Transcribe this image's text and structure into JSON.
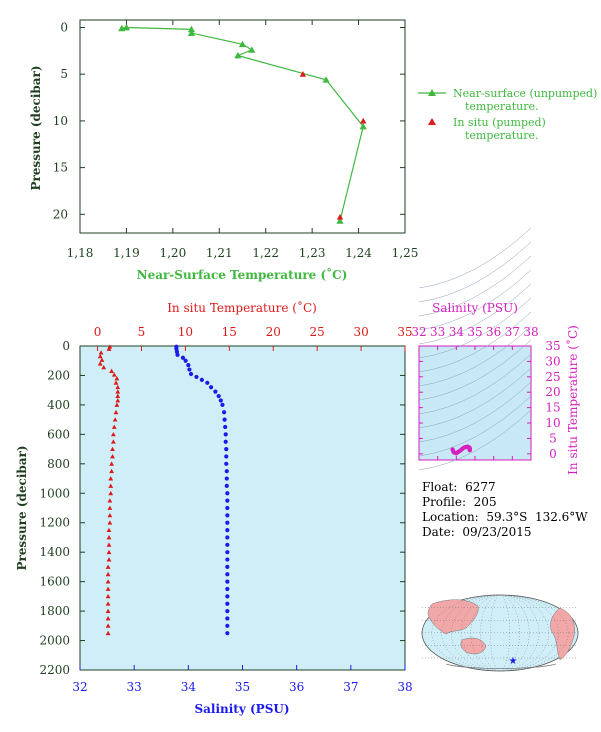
{
  "colors": {
    "near_surface": "#3fb83f",
    "insitu_temp": "#dd1a1a",
    "salinity": "#1a1aee",
    "ts_magenta": "#d61fbf",
    "axis_dark": "#1f3f1f",
    "profile_bg": "#cfeef8",
    "ts_bg": "#c8e8f6"
  },
  "info": {
    "float_label": "Float:",
    "float_value": "6277",
    "profile_label": "Profile:",
    "profile_value": "205",
    "location_label": "Location:",
    "location_value": "59.3°S  132.6°W",
    "date_label": "Date:",
    "date_value": "09/23/2015"
  },
  "chart_data": [
    {
      "type": "line",
      "xlabel": "Near-Surface Temperature (˚C)",
      "ylabel": "Pressure (decibar)",
      "xlim": [
        1.18,
        1.25
      ],
      "ylim": [
        0,
        22
      ],
      "y_inverted": true,
      "xticks": [
        "1,18",
        "1,19",
        "1,20",
        "1,21",
        "1,22",
        "1,23",
        "1,24",
        "1,25"
      ],
      "yticks": [
        "0",
        "5",
        "10",
        "15",
        "20"
      ],
      "legend_placement": "right",
      "series": [
        {
          "name": "Near-surface (unpumped) temperature.",
          "marker": "triangle",
          "connected": true,
          "points": [
            [
              1.189,
              0.1
            ],
            [
              1.19,
              0.0
            ],
            [
              1.204,
              0.2
            ],
            [
              1.204,
              0.6
            ],
            [
              1.215,
              1.8
            ],
            [
              1.217,
              2.4
            ],
            [
              1.214,
              3.0
            ],
            [
              1.233,
              5.6
            ],
            [
              1.241,
              10.6
            ],
            [
              1.236,
              20.7
            ]
          ]
        },
        {
          "name": "In situ (pumped) temperature.",
          "marker": "triangle",
          "connected": false,
          "points": [
            [
              1.228,
              5.0
            ],
            [
              1.241,
              10.0
            ],
            [
              1.236,
              20.3
            ]
          ]
        }
      ]
    },
    {
      "type": "scatter",
      "ylabel": "Pressure (decibar)",
      "ylim": [
        0,
        2200
      ],
      "y_inverted": true,
      "yticks": [
        "0",
        "200",
        "400",
        "600",
        "800",
        "1000",
        "1200",
        "1400",
        "1600",
        "1800",
        "2000",
        "2200"
      ],
      "x_top_label": "In situ Temperature (˚C)",
      "x_top_lim": [
        -2,
        35
      ],
      "x_top_ticks": [
        "0",
        "5",
        "10",
        "15",
        "20",
        "25",
        "30",
        "35"
      ],
      "x_bottom_label": "Salinity (PSU)",
      "x_bottom_lim": [
        32,
        38
      ],
      "x_bottom_ticks": [
        "32",
        "33",
        "34",
        "35",
        "36",
        "37",
        "38"
      ],
      "temperature": {
        "points": [
          [
            1.4,
            5
          ],
          [
            1.3,
            20
          ],
          [
            0.4,
            45
          ],
          [
            0.3,
            70
          ],
          [
            0.5,
            95
          ],
          [
            0.3,
            120
          ],
          [
            0.7,
            145
          ],
          [
            1.6,
            170
          ],
          [
            1.9,
            195
          ],
          [
            2.2,
            220
          ],
          [
            2.1,
            250
          ],
          [
            2.3,
            280
          ],
          [
            2.3,
            310
          ],
          [
            2.3,
            340
          ],
          [
            2.3,
            370
          ],
          [
            2.2,
            400
          ],
          [
            2.1,
            450
          ],
          [
            2.0,
            500
          ],
          [
            1.9,
            550
          ],
          [
            1.8,
            600
          ],
          [
            1.8,
            650
          ],
          [
            1.7,
            700
          ],
          [
            1.7,
            750
          ],
          [
            1.6,
            800
          ],
          [
            1.6,
            850
          ],
          [
            1.5,
            900
          ],
          [
            1.5,
            950
          ],
          [
            1.5,
            1000
          ],
          [
            1.4,
            1050
          ],
          [
            1.4,
            1100
          ],
          [
            1.4,
            1150
          ],
          [
            1.4,
            1200
          ],
          [
            1.3,
            1250
          ],
          [
            1.3,
            1300
          ],
          [
            1.3,
            1350
          ],
          [
            1.3,
            1400
          ],
          [
            1.3,
            1450
          ],
          [
            1.2,
            1500
          ],
          [
            1.2,
            1550
          ],
          [
            1.2,
            1600
          ],
          [
            1.2,
            1650
          ],
          [
            1.2,
            1700
          ],
          [
            1.2,
            1750
          ],
          [
            1.2,
            1800
          ],
          [
            1.2,
            1850
          ],
          [
            1.2,
            1900
          ],
          [
            1.2,
            1950
          ]
        ]
      },
      "salinity": {
        "points": [
          [
            33.78,
            5
          ],
          [
            33.78,
            20
          ],
          [
            33.79,
            40
          ],
          [
            33.8,
            60
          ],
          [
            33.9,
            80
          ],
          [
            33.95,
            100
          ],
          [
            34.0,
            130
          ],
          [
            34.02,
            160
          ],
          [
            34.05,
            190
          ],
          [
            34.15,
            210
          ],
          [
            34.25,
            230
          ],
          [
            34.35,
            250
          ],
          [
            34.42,
            280
          ],
          [
            34.5,
            310
          ],
          [
            34.56,
            340
          ],
          [
            34.6,
            370
          ],
          [
            34.63,
            400
          ],
          [
            34.66,
            450
          ],
          [
            34.67,
            500
          ],
          [
            34.68,
            550
          ],
          [
            34.69,
            600
          ],
          [
            34.69,
            650
          ],
          [
            34.7,
            700
          ],
          [
            34.7,
            750
          ],
          [
            34.7,
            800
          ],
          [
            34.71,
            850
          ],
          [
            34.71,
            900
          ],
          [
            34.71,
            950
          ],
          [
            34.72,
            1000
          ],
          [
            34.72,
            1050
          ],
          [
            34.72,
            1100
          ],
          [
            34.72,
            1150
          ],
          [
            34.72,
            1200
          ],
          [
            34.72,
            1250
          ],
          [
            34.72,
            1300
          ],
          [
            34.72,
            1350
          ],
          [
            34.72,
            1400
          ],
          [
            34.72,
            1450
          ],
          [
            34.72,
            1500
          ],
          [
            34.72,
            1550
          ],
          [
            34.72,
            1600
          ],
          [
            34.72,
            1650
          ],
          [
            34.72,
            1700
          ],
          [
            34.72,
            1750
          ],
          [
            34.72,
            1800
          ],
          [
            34.72,
            1850
          ],
          [
            34.72,
            1900
          ],
          [
            34.72,
            1950
          ]
        ]
      }
    },
    {
      "type": "scatter",
      "title": "Salinity (PSU)",
      "ylabel": "In situ Temperature (˚C)",
      "xlim": [
        32,
        38
      ],
      "ylim": [
        -2,
        35
      ],
      "xticks": [
        "32",
        "33",
        "34",
        "35",
        "36",
        "37",
        "38"
      ],
      "yticks": [
        "0",
        "5",
        "10",
        "15",
        "20",
        "25",
        "30",
        "35"
      ],
      "points": [
        [
          33.8,
          1.4
        ],
        [
          33.85,
          0.6
        ],
        [
          33.9,
          0.4
        ],
        [
          34.0,
          0.2
        ],
        [
          34.1,
          0.6
        ],
        [
          34.2,
          1.0
        ],
        [
          34.3,
          1.5
        ],
        [
          34.4,
          2.0
        ],
        [
          34.5,
          2.2
        ],
        [
          34.6,
          2.3
        ],
        [
          34.65,
          2.2
        ],
        [
          34.7,
          2.0
        ],
        [
          34.72,
          1.7
        ],
        [
          34.72,
          1.4
        ],
        [
          34.72,
          1.2
        ]
      ]
    }
  ]
}
